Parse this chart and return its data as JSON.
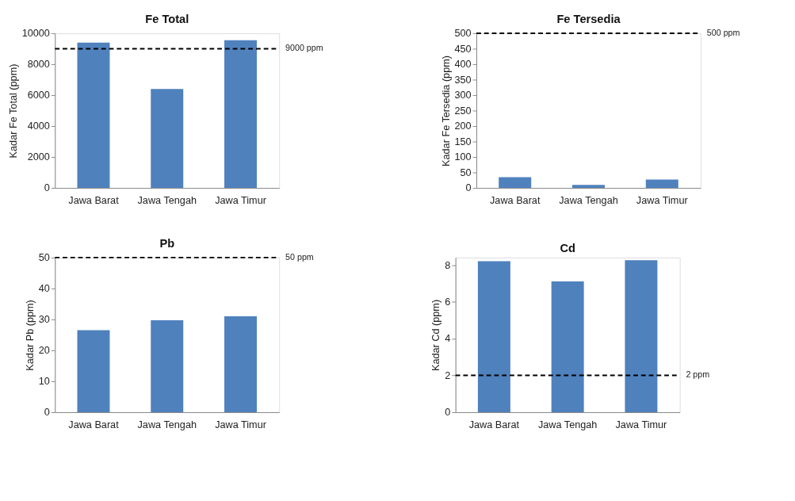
{
  "chart_data": [
    {
      "type": "bar",
      "title": "Fe Total",
      "ylabel": "Kadar Fe Total (ppm)",
      "categories": [
        "Jawa Barat",
        "Jawa Tengah",
        "Jawa Timur"
      ],
      "series": [
        {
          "color": "#4f81bd",
          "values": [
            9400,
            6400,
            9550
          ]
        }
      ],
      "ylim": [
        0,
        10000
      ],
      "yticks": [
        0,
        2000,
        4000,
        6000,
        8000,
        10000
      ],
      "ref_lines": [
        {
          "axis": "y",
          "value": 9000,
          "label": "9000 ppm",
          "color": "#000000",
          "line_style": "dashed"
        }
      ]
    },
    {
      "type": "bar",
      "title": "Fe Tersedia",
      "ylabel": "Kadar Fe Tersedia (ppm)",
      "categories": [
        "Jawa Barat",
        "Jawa Tengah",
        "Jawa Timur"
      ],
      "series": [
        {
          "color": "#4f81bd",
          "values": [
            35,
            10,
            27
          ]
        }
      ],
      "ylim": [
        0,
        500
      ],
      "yticks": [
        0,
        50,
        100,
        150,
        200,
        250,
        300,
        350,
        400,
        450,
        500
      ],
      "ref_lines": [
        {
          "axis": "y",
          "value": 500,
          "label": "500 ppm",
          "color": "#000000",
          "line_style": "dashed"
        }
      ]
    },
    {
      "type": "bar",
      "title": "Pb",
      "ylabel": "Kadar Pb (ppm)",
      "categories": [
        "Jawa Barat",
        "Jawa Tengah",
        "Jawa Timur"
      ],
      "series": [
        {
          "color": "#4f81bd",
          "values": [
            26.5,
            29.7,
            31.0
          ]
        }
      ],
      "ylim": [
        0,
        50
      ],
      "yticks": [
        0,
        10,
        20,
        30,
        40,
        50
      ],
      "ref_lines": [
        {
          "axis": "y",
          "value": 50,
          "label": "50 ppm",
          "color": "#000000",
          "line_style": "dashed"
        }
      ]
    },
    {
      "type": "bar",
      "title": "Cd",
      "ylabel": "Kadar Cd (ppm)",
      "categories": [
        "Jawa Barat",
        "Jawa Tengah",
        "Jawa Timur"
      ],
      "series": [
        {
          "color": "#4f81bd",
          "values": [
            8.2,
            7.1,
            8.25
          ]
        }
      ],
      "ylim": [
        0,
        8.4
      ],
      "yticks": [
        0,
        2,
        4,
        6,
        8
      ],
      "ref_lines": [
        {
          "axis": "y",
          "value": 2,
          "label": "2 ppm",
          "color": "#000000",
          "line_style": "dashed"
        }
      ]
    }
  ]
}
